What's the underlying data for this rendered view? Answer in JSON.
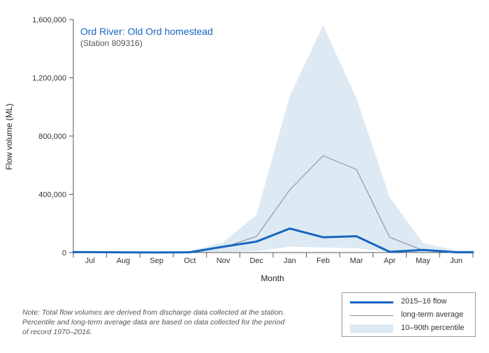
{
  "chart_data": {
    "type": "area",
    "title": "Ord River: Old Ord homestead",
    "subtitle": "(Station 809316)",
    "xlabel": "Month",
    "ylabel": "Flow volume (ML)",
    "categories": [
      "Jul",
      "Aug",
      "Sep",
      "Oct",
      "Nov",
      "Dec",
      "Jan",
      "Feb",
      "Mar",
      "Apr",
      "May",
      "Jun"
    ],
    "ylim": [
      0,
      1600000
    ],
    "yticks": [
      0,
      400000,
      800000,
      1200000,
      1600000
    ],
    "ytick_labels": [
      "0",
      "400,000",
      "800,000",
      "1,200,000",
      "1,600,000"
    ],
    "series": [
      {
        "name": "2015–16 flow",
        "kind": "line",
        "color": "#1565c0",
        "values": [
          3000,
          1000,
          500,
          2000,
          40000,
          75000,
          165000,
          105000,
          112000,
          5000,
          18000,
          2000
        ]
      },
      {
        "name": "long-term average",
        "kind": "line",
        "color": "#8a8a8a",
        "values": [
          2000,
          1000,
          500,
          2000,
          35000,
          110000,
          430000,
          665000,
          570000,
          105000,
          15000,
          2000
        ]
      },
      {
        "name": "10–90th percentile",
        "kind": "band",
        "color": "#dde9f3",
        "lower": [
          0,
          0,
          0,
          0,
          5000,
          10000,
          40000,
          35000,
          30000,
          5000,
          0,
          0
        ],
        "upper": [
          5000,
          3000,
          2000,
          10000,
          70000,
          260000,
          1075000,
          1560000,
          1060000,
          380000,
          65000,
          15000
        ]
      }
    ],
    "legend_position": "bottom-right",
    "grid": false
  },
  "note": "Note: Total flow volumes are derived from discharge data collected at the station. Percentile and long-term average data are based on data collected for the period of record 1970–2016."
}
